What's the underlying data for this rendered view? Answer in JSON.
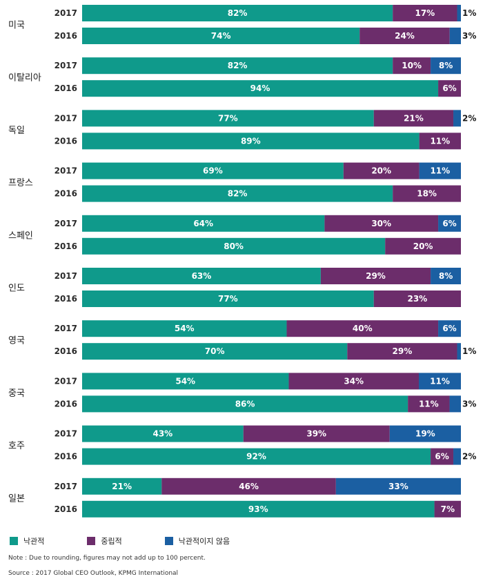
{
  "chart_data": {
    "type": "bar",
    "orientation": "horizontal",
    "stacked": true,
    "xlim": [
      0,
      100
    ],
    "grid": false,
    "legend_placement": "bottom-left",
    "series": [
      {
        "name": "낙관적",
        "color": "#0f9a8b"
      },
      {
        "name": "중립적",
        "color": "#6c2d6b"
      },
      {
        "name": "낙관적이지 않음",
        "color": "#1b5fa2"
      }
    ],
    "groups": [
      {
        "country": "미국",
        "rows": [
          {
            "year": "2017",
            "values": [
              82,
              17,
              1
            ]
          },
          {
            "year": "2016",
            "values": [
              74,
              24,
              3
            ]
          }
        ]
      },
      {
        "country": "이탈리아",
        "rows": [
          {
            "year": "2017",
            "values": [
              82,
              10,
              8
            ]
          },
          {
            "year": "2016",
            "values": [
              94,
              6,
              0
            ]
          }
        ]
      },
      {
        "country": "독일",
        "rows": [
          {
            "year": "2017",
            "values": [
              77,
              21,
              2
            ]
          },
          {
            "year": "2016",
            "values": [
              89,
              11,
              0
            ]
          }
        ]
      },
      {
        "country": "프랑스",
        "rows": [
          {
            "year": "2017",
            "values": [
              69,
              20,
              11
            ]
          },
          {
            "year": "2016",
            "values": [
              82,
              18,
              0
            ]
          }
        ]
      },
      {
        "country": "스페인",
        "rows": [
          {
            "year": "2017",
            "values": [
              64,
              30,
              6
            ]
          },
          {
            "year": "2016",
            "values": [
              80,
              20,
              0
            ]
          }
        ]
      },
      {
        "country": "인도",
        "rows": [
          {
            "year": "2017",
            "values": [
              63,
              29,
              8
            ]
          },
          {
            "year": "2016",
            "values": [
              77,
              23,
              0
            ]
          }
        ]
      },
      {
        "country": "영국",
        "rows": [
          {
            "year": "2017",
            "values": [
              54,
              40,
              6
            ]
          },
          {
            "year": "2016",
            "values": [
              70,
              29,
              1
            ]
          }
        ]
      },
      {
        "country": "중국",
        "rows": [
          {
            "year": "2017",
            "values": [
              54,
              34,
              11
            ]
          },
          {
            "year": "2016",
            "values": [
              86,
              11,
              3
            ]
          }
        ]
      },
      {
        "country": "호주",
        "rows": [
          {
            "year": "2017",
            "values": [
              43,
              39,
              19
            ]
          },
          {
            "year": "2016",
            "values": [
              92,
              6,
              2
            ]
          }
        ]
      },
      {
        "country": "일본",
        "rows": [
          {
            "year": "2017",
            "values": [
              21,
              46,
              33
            ]
          },
          {
            "year": "2016",
            "values": [
              93,
              7,
              0
            ]
          }
        ]
      }
    ]
  },
  "legend": {
    "items": [
      {
        "label": "낙관적",
        "color": "#0f9a8b"
      },
      {
        "label": "중립적",
        "color": "#6c2d6b"
      },
      {
        "label": "낙관적이지 않음",
        "color": "#1b5fa2"
      }
    ]
  },
  "notes": {
    "note": "Note : Due to rounding, figures may not add up to 100 percent.",
    "source": "Source : 2017 Global CEO Outlook, KPMG International"
  }
}
